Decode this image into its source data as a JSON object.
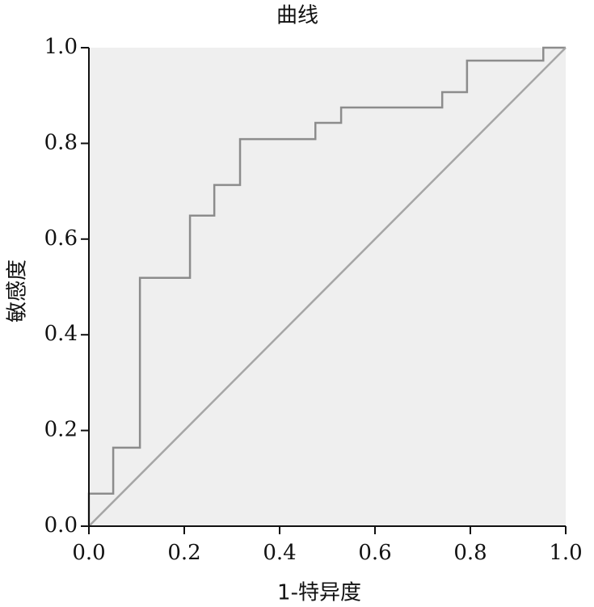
{
  "chart_data": {
    "type": "line",
    "title": "曲线",
    "x_label": "1-特异度",
    "y_label": "敏感度",
    "xlim": [
      0,
      1
    ],
    "ylim": [
      0,
      1
    ],
    "xticks": [
      {
        "value": 0,
        "label": "0.0"
      },
      0.2,
      0.4,
      0.6,
      0.8,
      {
        "value": 1,
        "label": "1.0"
      }
    ],
    "yticks": [
      {
        "value": 0,
        "label": "0.0"
      },
      0.2,
      0.4,
      0.6,
      0.8,
      {
        "value": 1,
        "label": "1.0"
      }
    ],
    "background": "#efefef",
    "series": [
      {
        "color": "#8c8c8c",
        "step": true,
        "x": [
          0,
          0,
          0.051,
          0.051,
          0.107,
          0.107,
          0.212,
          0.212,
          0.263,
          0.263,
          0.317,
          0.317,
          0.475,
          0.475,
          0.529,
          0.529,
          0.741,
          0.741,
          0.793,
          0.793,
          0.953,
          0.953,
          1
        ],
        "values": [
          0,
          0.068,
          0.068,
          0.164,
          0.164,
          0.519,
          0.519,
          0.649,
          0.649,
          0.713,
          0.713,
          0.809,
          0.809,
          0.843,
          0.843,
          0.875,
          0.875,
          0.907,
          0.907,
          0.973,
          0.973,
          1,
          1
        ]
      },
      {
        "color": "#a6a6a6",
        "x": [
          0,
          1
        ],
        "values": [
          0,
          1
        ]
      }
    ]
  }
}
